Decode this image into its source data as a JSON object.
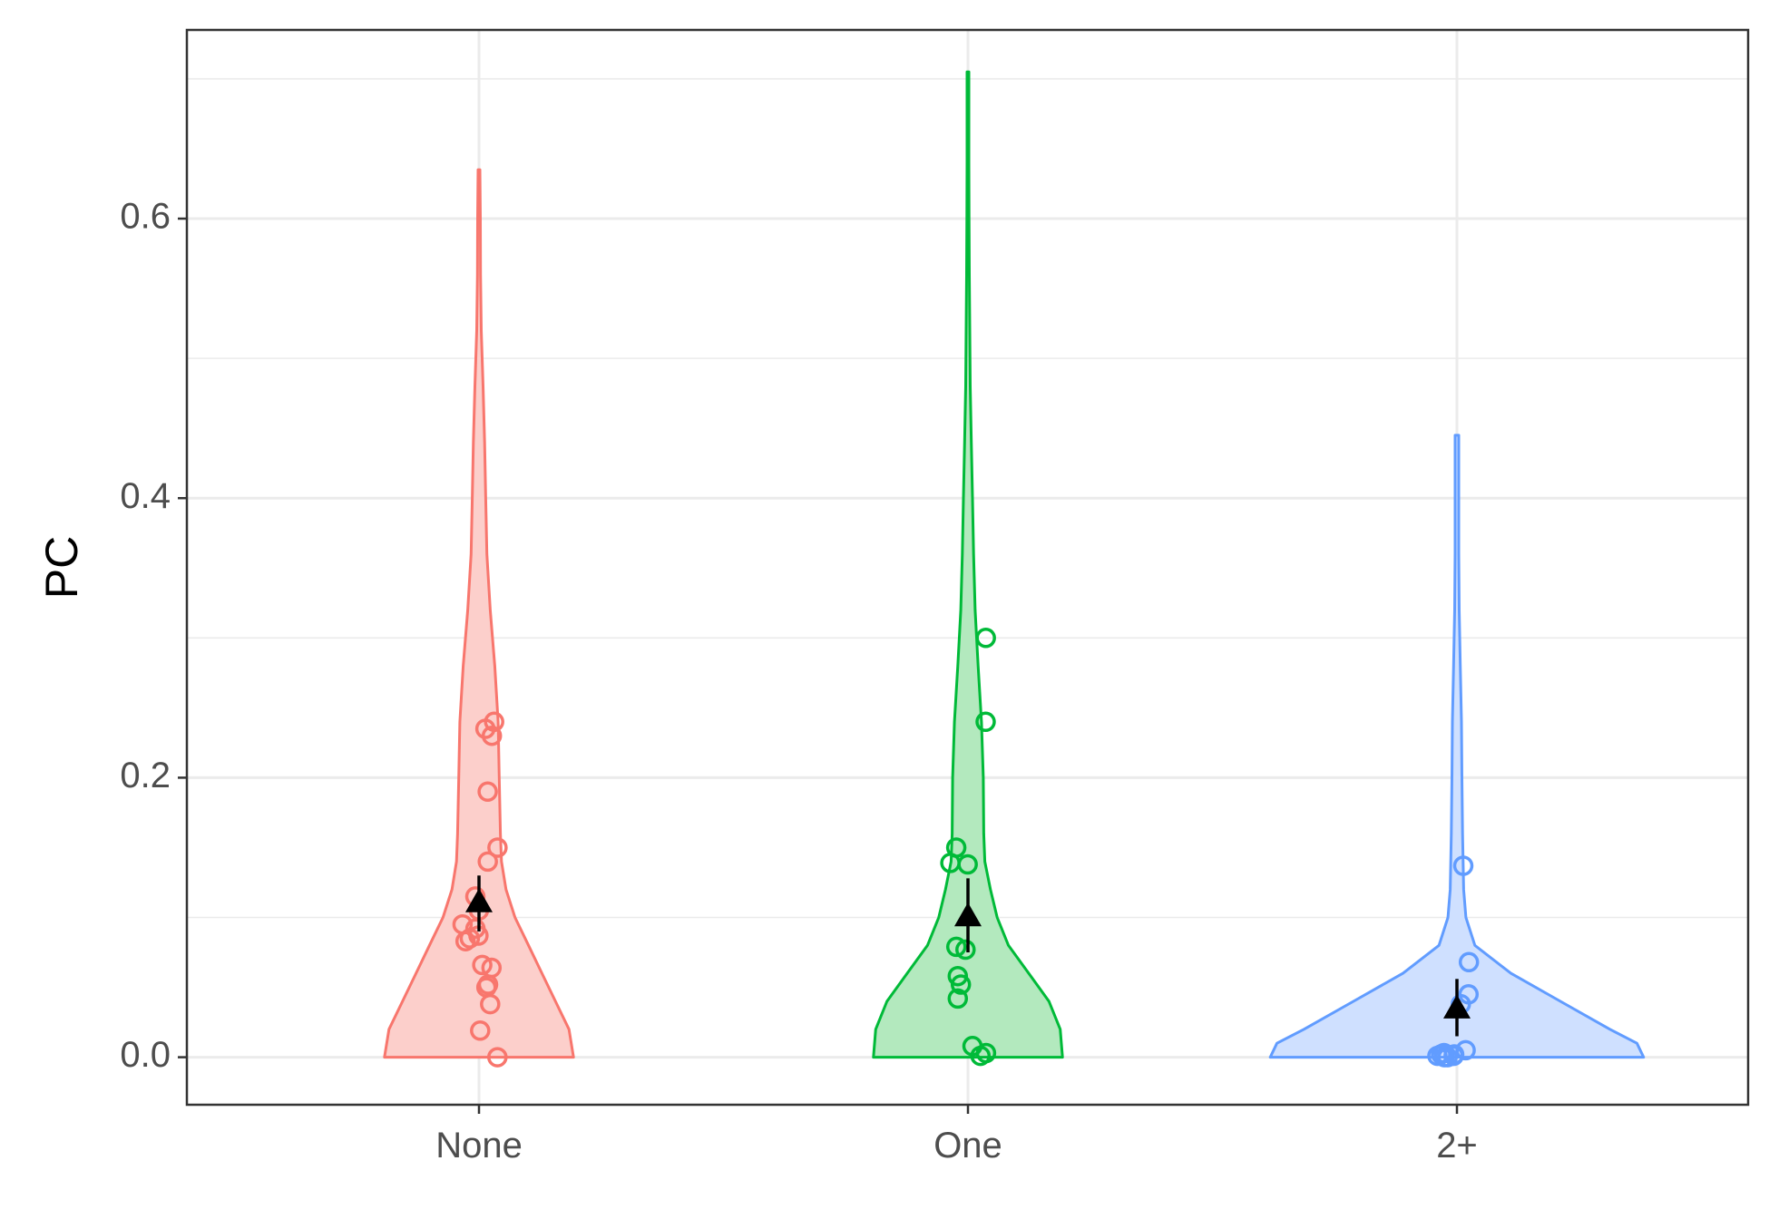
{
  "chart_data": {
    "type": "violin",
    "title": "",
    "xlabel": "",
    "ylabel": "PC",
    "ylim": [
      -0.034,
      0.735
    ],
    "yticks": [
      0.0,
      0.2,
      0.4,
      0.6
    ],
    "ytick_labels": [
      "0.0",
      "0.2",
      "0.4",
      "0.6"
    ],
    "grid": true,
    "legend": "none",
    "categories": [
      "None",
      "One",
      "2+"
    ],
    "groups": [
      {
        "name": "None",
        "color": "#F8766D",
        "fill": "#FCCFCB",
        "max": 0.635,
        "density": [
          [
            0.0,
            0.42
          ],
          [
            0.02,
            0.4
          ],
          [
            0.04,
            0.34
          ],
          [
            0.06,
            0.28
          ],
          [
            0.08,
            0.22
          ],
          [
            0.1,
            0.16
          ],
          [
            0.12,
            0.12
          ],
          [
            0.14,
            0.1
          ],
          [
            0.16,
            0.095
          ],
          [
            0.2,
            0.09
          ],
          [
            0.24,
            0.085
          ],
          [
            0.28,
            0.07
          ],
          [
            0.32,
            0.05
          ],
          [
            0.36,
            0.035
          ],
          [
            0.4,
            0.03
          ],
          [
            0.44,
            0.025
          ],
          [
            0.48,
            0.018
          ],
          [
            0.52,
            0.01
          ],
          [
            0.56,
            0.007
          ],
          [
            0.6,
            0.006
          ],
          [
            0.635,
            0.004
          ]
        ],
        "points": [
          0.0,
          0.019,
          0.038,
          0.05,
          0.052,
          0.064,
          0.066,
          0.083,
          0.085,
          0.087,
          0.092,
          0.095,
          0.105,
          0.115,
          0.14,
          0.15,
          0.19,
          0.23,
          0.235,
          0.24
        ],
        "mean": 0.111,
        "ci": [
          0.09,
          0.13
        ]
      },
      {
        "name": "One",
        "color": "#00BA38",
        "fill": "#B3E9BE",
        "max": 0.705,
        "density": [
          [
            0.0,
            0.42
          ],
          [
            0.02,
            0.41
          ],
          [
            0.04,
            0.36
          ],
          [
            0.06,
            0.27
          ],
          [
            0.08,
            0.18
          ],
          [
            0.1,
            0.13
          ],
          [
            0.12,
            0.1
          ],
          [
            0.14,
            0.075
          ],
          [
            0.16,
            0.07
          ],
          [
            0.2,
            0.068
          ],
          [
            0.24,
            0.06
          ],
          [
            0.28,
            0.045
          ],
          [
            0.32,
            0.032
          ],
          [
            0.36,
            0.025
          ],
          [
            0.4,
            0.02
          ],
          [
            0.44,
            0.015
          ],
          [
            0.48,
            0.01
          ],
          [
            0.52,
            0.008
          ],
          [
            0.56,
            0.006
          ],
          [
            0.6,
            0.005
          ],
          [
            0.64,
            0.004
          ],
          [
            0.705,
            0.004
          ]
        ],
        "points": [
          0.001,
          0.003,
          0.008,
          0.042,
          0.052,
          0.058,
          0.077,
          0.079,
          0.138,
          0.139,
          0.15,
          0.24,
          0.3
        ],
        "mean": 0.101,
        "ci": [
          0.075,
          0.128
        ]
      },
      {
        "name": "2+",
        "color": "#619CFF",
        "fill": "#CFE0FF",
        "max": 0.445,
        "density": [
          [
            0.0,
            0.83
          ],
          [
            0.01,
            0.8
          ],
          [
            0.02,
            0.68
          ],
          [
            0.04,
            0.46
          ],
          [
            0.06,
            0.24
          ],
          [
            0.08,
            0.08
          ],
          [
            0.1,
            0.04
          ],
          [
            0.12,
            0.03
          ],
          [
            0.16,
            0.025
          ],
          [
            0.2,
            0.022
          ],
          [
            0.24,
            0.02
          ],
          [
            0.28,
            0.015
          ],
          [
            0.32,
            0.01
          ],
          [
            0.36,
            0.008
          ],
          [
            0.4,
            0.008
          ],
          [
            0.445,
            0.008
          ]
        ],
        "points": [
          0.0,
          0.0,
          0.001,
          0.001,
          0.002,
          0.002,
          0.003,
          0.005,
          0.038,
          0.045,
          0.068,
          0.137
        ],
        "mean": 0.035,
        "ci": [
          0.015,
          0.056
        ]
      }
    ]
  }
}
